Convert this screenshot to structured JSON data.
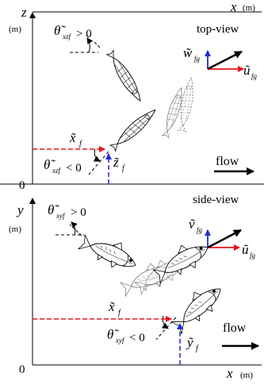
{
  "top_panel": {
    "axis_y": "z",
    "axis_y_unit": "(m)",
    "axis_x": "x",
    "axis_x_unit": "(m)",
    "title": "top-view",
    "origin": "0",
    "flow_label": "flow",
    "theta_pos": "θ̃",
    "theta_pos_sub": "xzf",
    "theta_pos_rel": "> 0",
    "theta_neg": "θ̃",
    "theta_neg_sub": "xzf",
    "theta_neg_rel": "< 0",
    "pos_label": "x̃",
    "pos_sub": "f",
    "lateral_label": "z̃",
    "lateral_sub": "f",
    "vel_v": "w̃",
    "vel_v_sub": "fg",
    "vel_u": "ũ",
    "vel_u_sub": "fg"
  },
  "bottom_panel": {
    "axis_y": "y",
    "axis_y_unit": "(m)",
    "axis_x": "x",
    "axis_x_unit": "(m)",
    "title": "side-view",
    "origin": "0",
    "flow_label": "flow",
    "theta_pos": "θ̃",
    "theta_pos_sub": "xyf",
    "theta_pos_rel": "> 0",
    "theta_neg": "θ̃",
    "theta_neg_sub": "xyf",
    "theta_neg_rel": "< 0",
    "pos_label": "x̃",
    "pos_sub": "f",
    "lateral_label": "ỹ",
    "lateral_sub": "f",
    "vel_v": "ṽ",
    "vel_v_sub": "fg",
    "vel_u": "ũ",
    "vel_u_sub": "fg"
  },
  "colors": {
    "red": "#e8141b",
    "blue": "#1f2bd6",
    "black": "#000000",
    "fish_ghost": "#8a8a8a"
  }
}
